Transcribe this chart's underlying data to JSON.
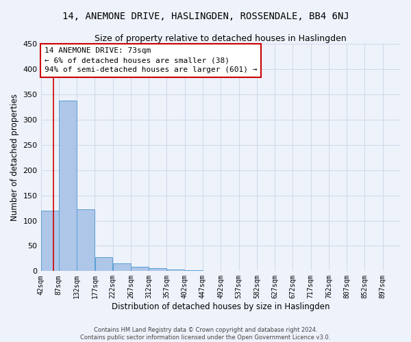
{
  "title": "14, ANEMONE DRIVE, HASLINGDEN, ROSSENDALE, BB4 6NJ",
  "subtitle": "Size of property relative to detached houses in Haslingden",
  "xlabel": "Distribution of detached houses by size in Haslingden",
  "ylabel": "Number of detached properties",
  "footer_line1": "Contains HM Land Registry data © Crown copyright and database right 2024.",
  "footer_line2": "Contains public sector information licensed under the Open Government Licence v3.0.",
  "bar_edges": [
    42,
    87,
    132,
    177,
    222,
    267,
    312,
    357,
    402,
    447,
    492,
    537,
    582,
    627,
    672,
    717,
    762,
    807,
    852,
    897,
    942
  ],
  "bar_heights": [
    120,
    338,
    122,
    28,
    15,
    9,
    6,
    3,
    2,
    1,
    1,
    1,
    1,
    0,
    1,
    0,
    0,
    1,
    0,
    1
  ],
  "bar_color": "#aec6e8",
  "bar_edge_color": "#5a9fd4",
  "property_size": 73,
  "red_line_color": "#cc0000",
  "annotation_line1": "14 ANEMONE DRIVE: 73sqm",
  "annotation_line2": "← 6% of detached houses are smaller (38)",
  "annotation_line3": "94% of semi-detached houses are larger (601) →",
  "annotation_box_color": "#cc0000",
  "annotation_bg_color": "#ffffff",
  "ylim": [
    0,
    450
  ],
  "grid_color": "#d0d8e8",
  "background_color": "#eef2fb",
  "title_fontsize": 10,
  "subtitle_fontsize": 9,
  "tick_label_fontsize": 7,
  "ylabel_fontsize": 8.5,
  "xlabel_fontsize": 8.5,
  "footer_fontsize": 6,
  "annotation_fontsize": 8
}
